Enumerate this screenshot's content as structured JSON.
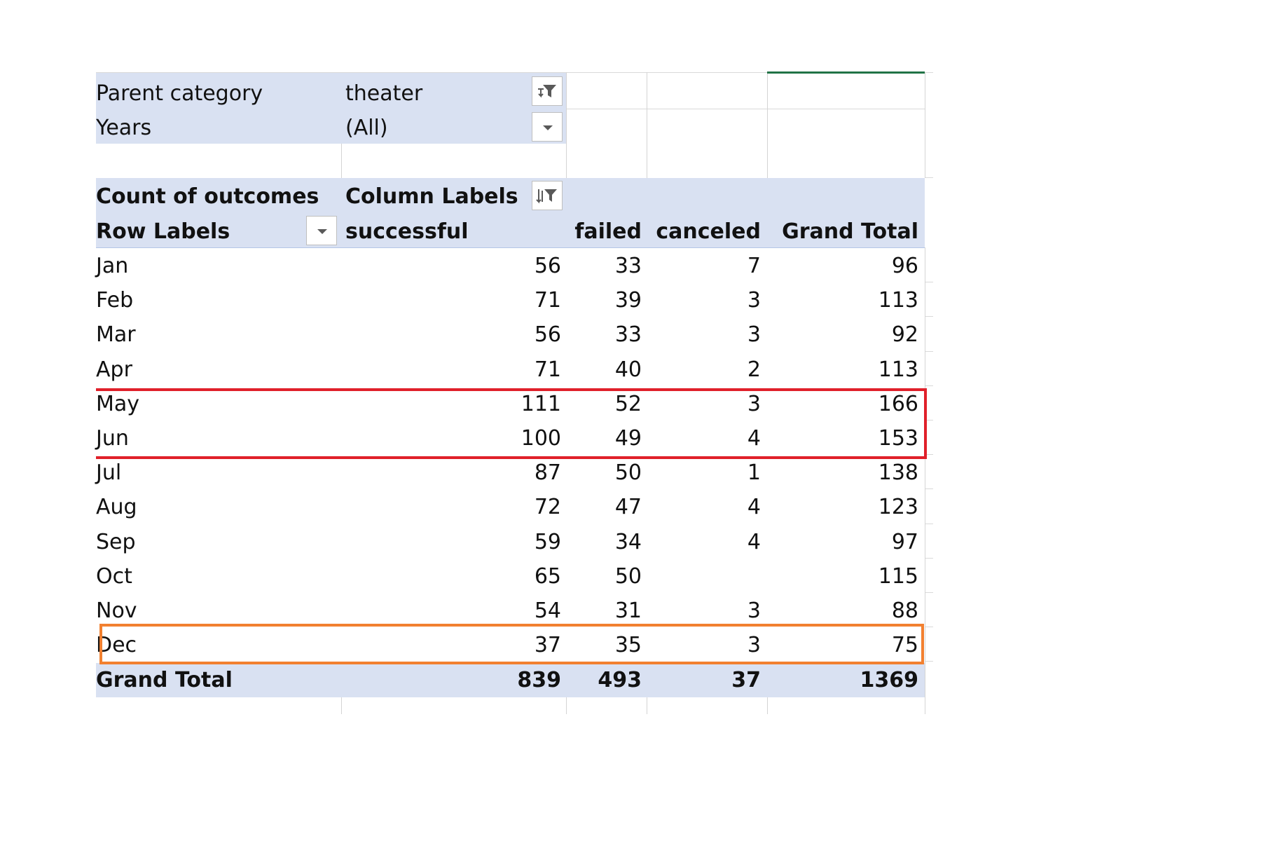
{
  "filters": [
    {
      "label": "Parent category",
      "value": "theater",
      "icon": "filter-applied-icon"
    },
    {
      "label": "Years",
      "value": "(All)",
      "icon": "dropdown-arrow-icon"
    }
  ],
  "pivot": {
    "measure_label": "Count of outcomes",
    "column_labels": "Column Labels",
    "row_labels": "Row Labels",
    "columns": [
      "successful",
      "failed",
      "canceled",
      "Grand Total"
    ],
    "rows": [
      {
        "label": "Jan",
        "values": [
          "56",
          "33",
          "7",
          "96"
        ]
      },
      {
        "label": "Feb",
        "values": [
          "71",
          "39",
          "3",
          "113"
        ]
      },
      {
        "label": "Mar",
        "values": [
          "56",
          "33",
          "3",
          "92"
        ]
      },
      {
        "label": "Apr",
        "values": [
          "71",
          "40",
          "2",
          "113"
        ]
      },
      {
        "label": "May",
        "values": [
          "111",
          "52",
          "3",
          "166"
        ]
      },
      {
        "label": "Jun",
        "values": [
          "100",
          "49",
          "4",
          "153"
        ]
      },
      {
        "label": "Jul",
        "values": [
          "87",
          "50",
          "1",
          "138"
        ]
      },
      {
        "label": "Aug",
        "values": [
          "72",
          "47",
          "4",
          "123"
        ]
      },
      {
        "label": "Sep",
        "values": [
          "59",
          "34",
          "4",
          "97"
        ]
      },
      {
        "label": "Oct",
        "values": [
          "65",
          "50",
          "",
          "115"
        ]
      },
      {
        "label": "Nov",
        "values": [
          "54",
          "31",
          "3",
          "88"
        ]
      },
      {
        "label": "Dec",
        "values": [
          "37",
          "35",
          "3",
          "75"
        ]
      }
    ],
    "grand_total": {
      "label": "Grand Total",
      "values": [
        "839",
        "493",
        "37",
        "1369"
      ]
    }
  },
  "highlights": [
    {
      "name": "may-jun-highlight",
      "color": "#e0202a"
    },
    {
      "name": "dec-highlight",
      "color": "#f28030"
    }
  ],
  "colors": {
    "pivot_band": "#d9e1f2",
    "active_cell_border": "#217346"
  }
}
